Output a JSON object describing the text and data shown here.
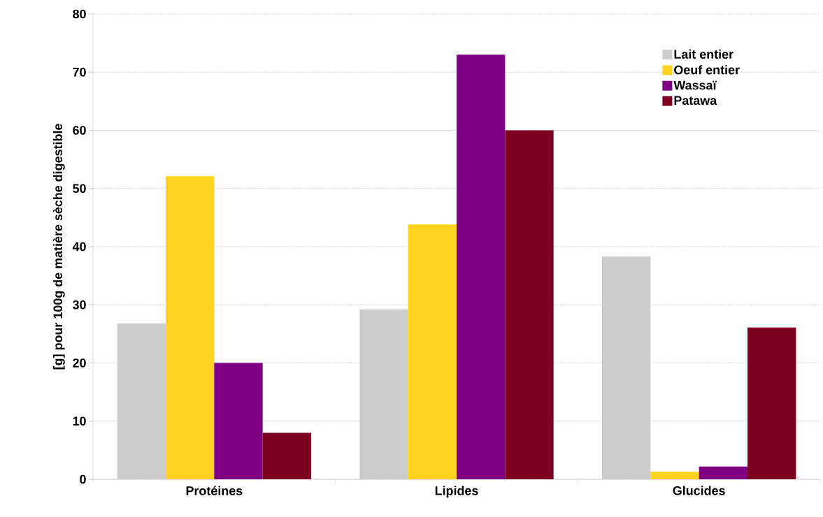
{
  "chart_data": {
    "type": "bar",
    "ylabel": "[g] pour 100g de matière sèche digestible",
    "categories": [
      "Protéines",
      "Lipides",
      "Glucides"
    ],
    "series": [
      {
        "name": "Lait entier",
        "color": "#cccccc",
        "values": [
          26.8,
          29.2,
          38.3
        ]
      },
      {
        "name": "Oeuf entier",
        "color": "#ffd320",
        "values": [
          52.1,
          43.8,
          1.3
        ]
      },
      {
        "name": "Wassaï",
        "color": "#7e0080",
        "values": [
          20.0,
          73.0,
          2.2
        ]
      },
      {
        "name": "Patawa",
        "color": "#7e0021",
        "values": [
          8.0,
          60.0,
          26.1
        ]
      }
    ],
    "ylim": [
      0,
      80
    ],
    "yticks": [
      0,
      10,
      20,
      30,
      40,
      50,
      60,
      70,
      80
    ],
    "grid": "y",
    "legend": "top right"
  }
}
